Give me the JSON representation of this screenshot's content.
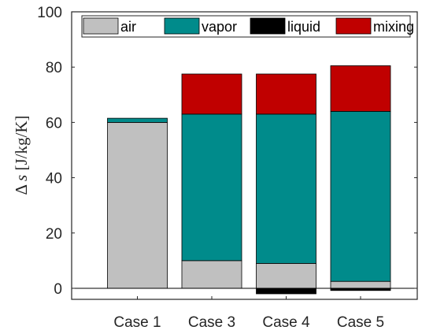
{
  "chart_data": {
    "type": "bar",
    "stacked": true,
    "categories": [
      "Case 1",
      "Case 3",
      "Case 4",
      "Case 5"
    ],
    "series": [
      {
        "name": "air",
        "color": "#c0c0c0",
        "values": [
          60,
          10,
          9,
          2.5
        ]
      },
      {
        "name": "vapor",
        "color": "#008b8b",
        "values": [
          1.5,
          53,
          54,
          61.5
        ]
      },
      {
        "name": "liquid",
        "color": "#000000",
        "values": [
          0,
          0,
          -2,
          -0.8
        ]
      },
      {
        "name": "mixing",
        "color": "#c00000",
        "values": [
          0,
          14.5,
          14.5,
          16.5
        ]
      }
    ],
    "ylabel_symbol": "Δ",
    "ylabel_var": "s",
    "ylabel_unit": " [J/kg/K]",
    "ylim": [
      -4,
      100
    ],
    "yticks": [
      0,
      20,
      40,
      60,
      80,
      100
    ],
    "legend_position": "top",
    "grid": false
  }
}
